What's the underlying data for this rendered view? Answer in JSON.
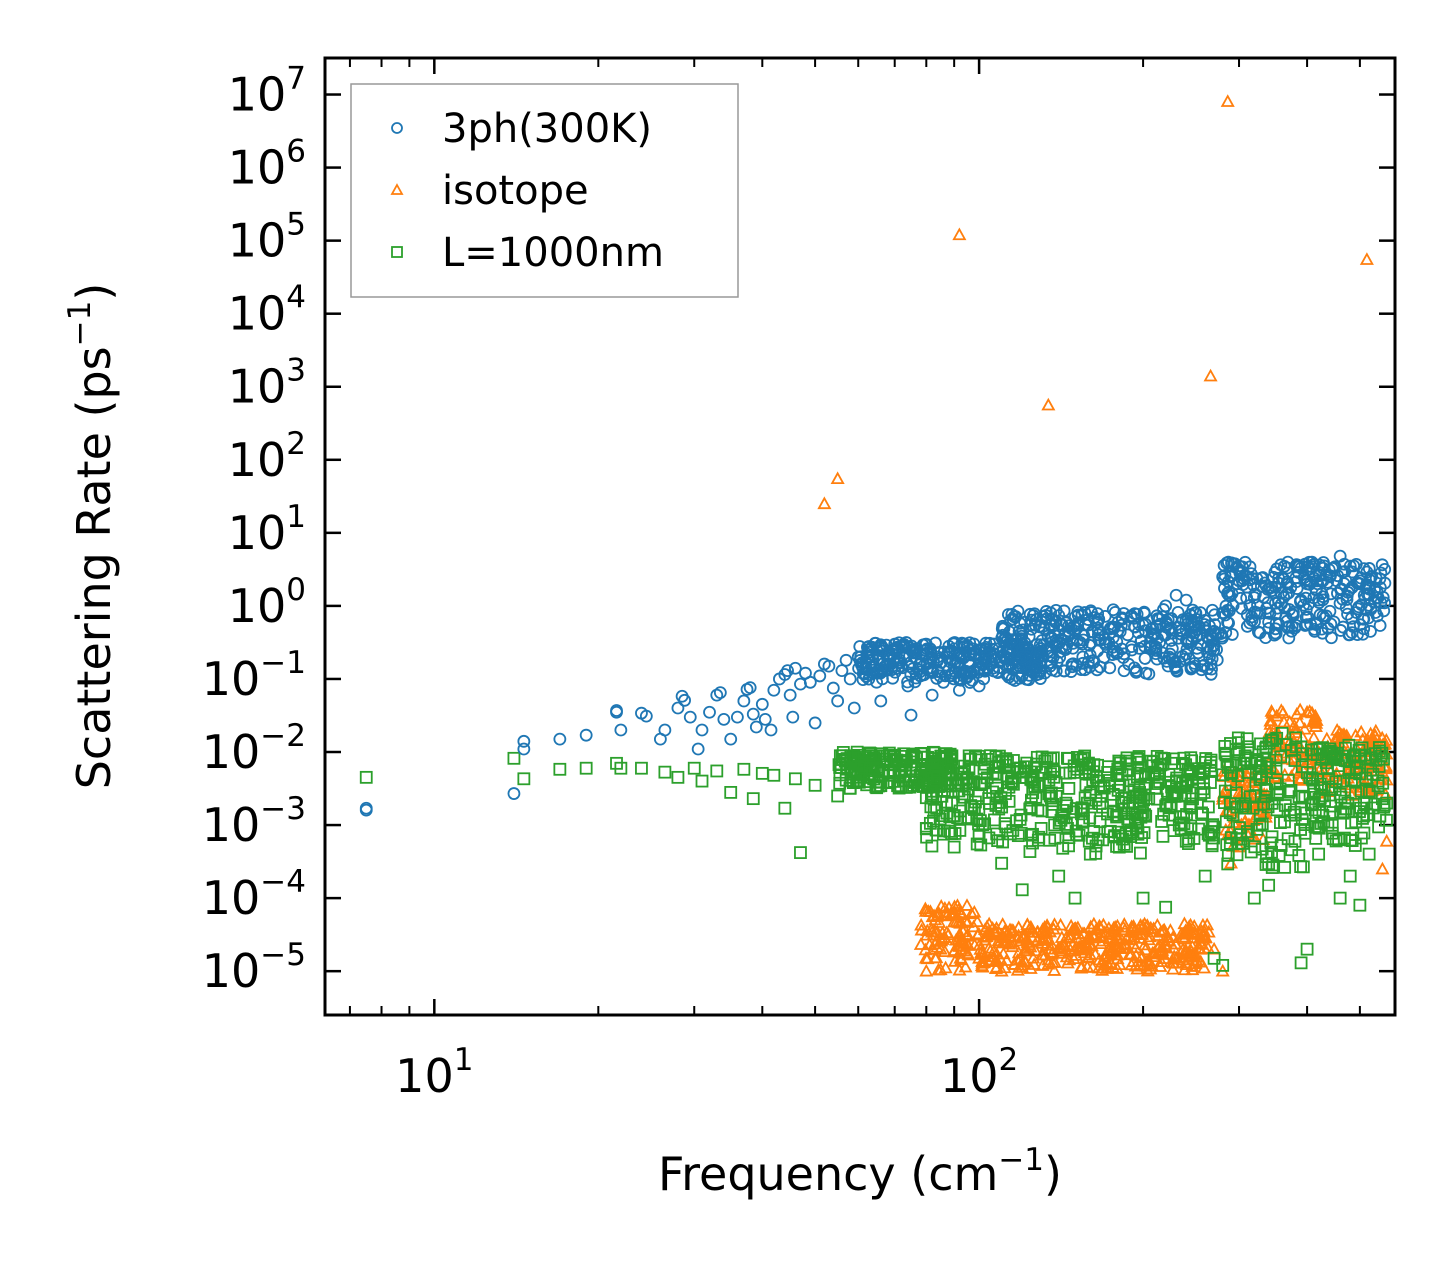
{
  "chart_data": {
    "type": "scatter",
    "xscale": "log",
    "yscale": "log",
    "xlim": [
      6.3,
      580
    ],
    "ylim_exponent": [
      -5.6,
      7.5
    ],
    "xlabel": {
      "main": "Frequency (cm",
      "sup": "−1",
      "tail": ")"
    },
    "ylabel": {
      "main": "Scattering Rate (ps",
      "sup": "−1",
      "tail": ")"
    },
    "xticks": [
      {
        "value": 10,
        "base": "10",
        "exp": "1"
      },
      {
        "value": 100,
        "base": "10",
        "exp": "2"
      }
    ],
    "yticks": [
      {
        "value": 7,
        "base": "10",
        "exp": "7"
      },
      {
        "value": 6,
        "base": "10",
        "exp": "6"
      },
      {
        "value": 5,
        "base": "10",
        "exp": "5"
      },
      {
        "value": 4,
        "base": "10",
        "exp": "4"
      },
      {
        "value": 3,
        "base": "10",
        "exp": "3"
      },
      {
        "value": 2,
        "base": "10",
        "exp": "2"
      },
      {
        "value": 1,
        "base": "10",
        "exp": "1"
      },
      {
        "value": 0,
        "base": "10",
        "exp": "0"
      },
      {
        "value": -1,
        "base": "10",
        "exp": "−1"
      },
      {
        "value": -2,
        "base": "10",
        "exp": "−2"
      },
      {
        "value": -3,
        "base": "10",
        "exp": "−3"
      },
      {
        "value": -4,
        "base": "10",
        "exp": "−4"
      },
      {
        "value": -5,
        "base": "10",
        "exp": "−5"
      }
    ],
    "legend_position": "top-left",
    "series": [
      {
        "name": "3ph(300K)",
        "marker": "circle",
        "color": "#1f77b4",
        "points": [
          [
            7.5,
            0.0016
          ],
          [
            7.5,
            0.0017
          ],
          [
            14,
            0.0027
          ],
          [
            14.6,
            0.011
          ],
          [
            14.6,
            0.014
          ],
          [
            17,
            0.015
          ],
          [
            19,
            0.017
          ],
          [
            21.6,
            0.035
          ],
          [
            21.6,
            0.037
          ],
          [
            22,
            0.02
          ],
          [
            24,
            0.034
          ],
          [
            24.5,
            0.031
          ],
          [
            26,
            0.015
          ],
          [
            26.5,
            0.02
          ],
          [
            28,
            0.04
          ],
          [
            28.5,
            0.058
          ],
          [
            28.8,
            0.051
          ],
          [
            29.5,
            0.03
          ],
          [
            30.5,
            0.011
          ],
          [
            31,
            0.02
          ],
          [
            32,
            0.035
          ],
          [
            33,
            0.06
          ],
          [
            33.5,
            0.065
          ],
          [
            34,
            0.028
          ],
          [
            35,
            0.015
          ],
          [
            36,
            0.03
          ],
          [
            37,
            0.05
          ],
          [
            37.5,
            0.072
          ],
          [
            38,
            0.076
          ],
          [
            38.5,
            0.033
          ],
          [
            39,
            0.022
          ],
          [
            40,
            0.045
          ],
          [
            40.5,
            0.028
          ],
          [
            41.5,
            0.02
          ],
          [
            42,
            0.07
          ],
          [
            43,
            0.1
          ],
          [
            44,
            0.115
          ],
          [
            44.5,
            0.13
          ],
          [
            45,
            0.06
          ],
          [
            45.5,
            0.03
          ],
          [
            46,
            0.14
          ],
          [
            47,
            0.085
          ],
          [
            48,
            0.12
          ],
          [
            49,
            0.09
          ],
          [
            50,
            0.025
          ],
          [
            51,
            0.11
          ],
          [
            52,
            0.16
          ],
          [
            53,
            0.15
          ],
          [
            54,
            0.075
          ],
          [
            55,
            0.05
          ],
          [
            56,
            0.13
          ],
          [
            57,
            0.18
          ],
          [
            58,
            0.1
          ],
          [
            59,
            0.04
          ],
          [
            60,
            0.2
          ],
          [
            62,
            0.14
          ],
          [
            63,
            0.25
          ],
          [
            65,
            0.12
          ],
          [
            66,
            0.05
          ],
          [
            68,
            0.22
          ],
          [
            70,
            0.3
          ],
          [
            72,
            0.15
          ],
          [
            74,
            0.08
          ],
          [
            75,
            0.032
          ],
          [
            76,
            0.25
          ],
          [
            78,
            0.11
          ],
          [
            80,
            0.3
          ],
          [
            82,
            0.06
          ],
          [
            84,
            0.2
          ],
          [
            86,
            0.09
          ],
          [
            88,
            0.28
          ],
          [
            90,
            0.15
          ],
          [
            92,
            0.07
          ],
          [
            94,
            0.3
          ],
          [
            96,
            0.12
          ],
          [
            98,
            0.22
          ],
          [
            100,
            0.08
          ],
          [
            103,
            0.25
          ],
          [
            106,
            0.14
          ],
          [
            110,
            0.18
          ],
          [
            115,
            0.1
          ],
          [
            120,
            0.2
          ],
          [
            128,
            0.15
          ],
          [
            135,
            0.55
          ],
          [
            138,
            0.6
          ],
          [
            145,
            0.3
          ],
          [
            150,
            0.45
          ],
          [
            155,
            0.2
          ],
          [
            165,
            0.5
          ],
          [
            170,
            0.35
          ],
          [
            180,
            0.6
          ],
          [
            190,
            0.7
          ],
          [
            200,
            0.55
          ],
          [
            210,
            0.4
          ],
          [
            220,
            1.0
          ],
          [
            230,
            1.4
          ],
          [
            240,
            1.2
          ],
          [
            250,
            0.8
          ],
          [
            260,
            0.5
          ],
          [
            270,
            0.45
          ],
          [
            280,
            2.5
          ],
          [
            290,
            2.6
          ],
          [
            300,
            2.2
          ],
          [
            310,
            1.8
          ],
          [
            320,
            1.3
          ],
          [
            330,
            2.4
          ],
          [
            340,
            0.6
          ],
          [
            350,
            1.8
          ],
          [
            360,
            2.4
          ],
          [
            370,
            1.5
          ],
          [
            380,
            0.5
          ],
          [
            390,
            1.2
          ],
          [
            400,
            2.0
          ],
          [
            420,
            1.2
          ],
          [
            440,
            2.5
          ],
          [
            460,
            4.8
          ],
          [
            480,
            3.5
          ],
          [
            500,
            2.2
          ],
          [
            520,
            1.7
          ],
          [
            540,
            1.3
          ],
          [
            555,
            1.1
          ]
        ],
        "dense_segments": [
          [
            60,
            130,
            -1.05,
            -0.5
          ],
          [
            110,
            280,
            -0.95,
            -0.05
          ],
          [
            280,
            560,
            -0.45,
            0.6
          ]
        ]
      },
      {
        "name": "isotope",
        "marker": "triangle",
        "color": "#ff7f0e",
        "points": [
          [
            52,
            25
          ],
          [
            55,
            55
          ],
          [
            92,
            120000
          ],
          [
            134,
            560
          ],
          [
            266,
            1400
          ],
          [
            286,
            8000000
          ],
          [
            515,
            55000
          ],
          [
            80,
            1e-05
          ],
          [
            85,
            2e-05
          ],
          [
            90,
            6e-05
          ],
          [
            95,
            3e-05
          ],
          [
            100,
            1.5e-05
          ],
          [
            110,
            1e-05
          ],
          [
            120,
            3e-05
          ],
          [
            140,
            2e-05
          ],
          [
            170,
            1.2e-05
          ],
          [
            200,
            1.2e-05
          ],
          [
            240,
            1.8e-05
          ],
          [
            270,
            2e-05
          ],
          [
            280,
            1e-05
          ],
          [
            290,
            0.0003
          ],
          [
            300,
            0.0005
          ],
          [
            320,
            0.004
          ],
          [
            340,
            0.007
          ],
          [
            370,
            0.008
          ],
          [
            400,
            0.035
          ],
          [
            420,
            0.01
          ],
          [
            450,
            0.01
          ],
          [
            480,
            0.006
          ],
          [
            500,
            0.003
          ],
          [
            530,
            0.014
          ],
          [
            550,
            0.00025
          ],
          [
            560,
            0.0006
          ]
        ],
        "dense_segments": [
          [
            78,
            100,
            -5.0,
            -4.1
          ],
          [
            100,
            265,
            -5.0,
            -4.35
          ],
          [
            280,
            340,
            -3.3,
            -2.2
          ],
          [
            340,
            420,
            -2.4,
            -1.4
          ],
          [
            420,
            560,
            -2.6,
            -1.7
          ]
        ]
      },
      {
        "name": "L=1000nm",
        "marker": "square",
        "color": "#2ca02c",
        "points": [
          [
            7.5,
            0.0045
          ],
          [
            14,
            0.0082
          ],
          [
            14.6,
            0.0043
          ],
          [
            17,
            0.0058
          ],
          [
            19,
            0.006
          ],
          [
            21.6,
            0.007
          ],
          [
            22,
            0.006
          ],
          [
            24,
            0.006
          ],
          [
            26.5,
            0.0053
          ],
          [
            28,
            0.0045
          ],
          [
            30,
            0.006
          ],
          [
            31,
            0.004
          ],
          [
            33,
            0.0055
          ],
          [
            35,
            0.0028
          ],
          [
            37,
            0.0058
          ],
          [
            38.5,
            0.0023
          ],
          [
            40,
            0.0051
          ],
          [
            42,
            0.0048
          ],
          [
            44,
            0.0017
          ],
          [
            46,
            0.0043
          ],
          [
            47,
            0.00042
          ],
          [
            50,
            0.0035
          ],
          [
            55,
            0.0025
          ],
          [
            60,
            0.009
          ],
          [
            70,
            0.008
          ],
          [
            80,
            0.0009
          ],
          [
            90,
            0.0005
          ],
          [
            100,
            0.0007
          ],
          [
            110,
            0.0003
          ],
          [
            120,
            0.00013
          ],
          [
            130,
            0.0009
          ],
          [
            140,
            0.0002
          ],
          [
            150,
            0.0001
          ],
          [
            160,
            0.0004
          ],
          [
            180,
            0.0008
          ],
          [
            200,
            0.0001
          ],
          [
            220,
            7.5e-05
          ],
          [
            240,
            0.0006
          ],
          [
            260,
            0.0002
          ],
          [
            270,
            1.5e-05
          ],
          [
            280,
            1.2e-05
          ],
          [
            300,
            0.01
          ],
          [
            320,
            0.0001
          ],
          [
            340,
            0.00015
          ],
          [
            360,
            0.018
          ],
          [
            380,
            0.0006
          ],
          [
            390,
            1.3e-05
          ],
          [
            400,
            2e-05
          ],
          [
            420,
            0.0004
          ],
          [
            460,
            0.0001
          ],
          [
            480,
            0.0002
          ],
          [
            500,
            8e-05
          ],
          [
            520,
            0.0004
          ],
          [
            540,
            0.004
          ],
          [
            560,
            0.002
          ]
        ],
        "dense_segments": [
          [
            55,
            90,
            -2.5,
            -2.0
          ],
          [
            80,
            120,
            -3.3,
            -2.05
          ],
          [
            120,
            200,
            -3.4,
            -2.05
          ],
          [
            200,
            270,
            -3.3,
            -2.05
          ],
          [
            280,
            400,
            -3.6,
            -1.8
          ],
          [
            400,
            560,
            -3.3,
            -1.9
          ]
        ]
      }
    ]
  }
}
